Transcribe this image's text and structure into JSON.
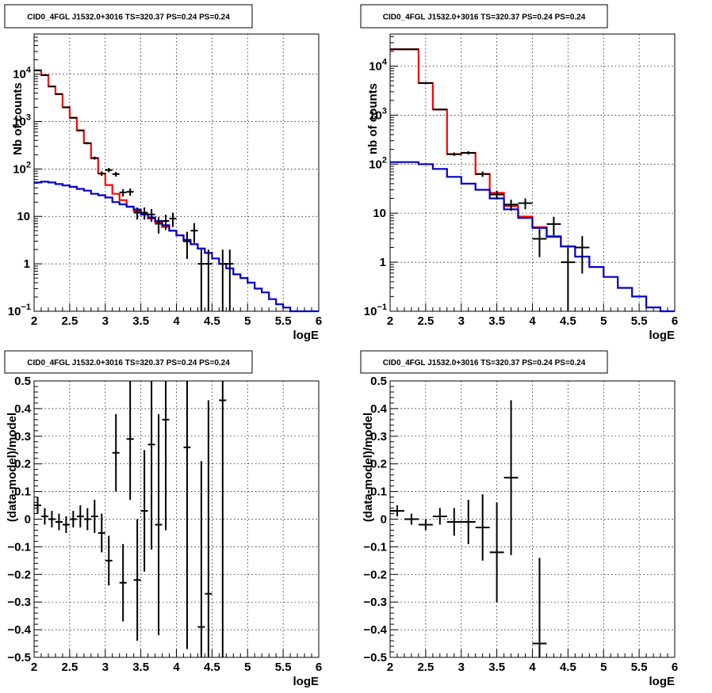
{
  "chart_data": [
    {
      "type": "line",
      "title": "CID0_4FGL J1532.0+3016 TS=320.37 PS=0.24 PS=0.24",
      "xlabel": "logE",
      "ylabel": "Nb of counts",
      "log_y": true,
      "xlim": [
        2,
        6
      ],
      "ylim": [
        0.1,
        70000
      ],
      "grid": true,
      "x_ticks": [
        "2",
        "2.5",
        "3",
        "3.5",
        "4",
        "4.5",
        "5",
        "5.5",
        "6"
      ],
      "y_ticks": [
        {
          "value": 0.1,
          "base": "10",
          "exp": "−1"
        },
        {
          "value": 1,
          "label": "1"
        },
        {
          "value": 10,
          "label": "10"
        },
        {
          "value": 100,
          "base": "10",
          "exp": "2"
        },
        {
          "value": 1000,
          "base": "10",
          "exp": "3"
        },
        {
          "value": 10000,
          "base": "10",
          "exp": "4"
        }
      ],
      "bin_width": 0.1,
      "series": [
        {
          "color": "#ff0000",
          "kind": "step",
          "x": [
            2.0,
            2.1,
            2.2,
            2.3,
            2.4,
            2.5,
            2.6,
            2.7,
            2.8,
            2.9,
            3.0,
            3.1,
            3.2,
            3.3,
            3.4,
            3.5,
            3.6,
            3.7,
            3.8,
            3.9,
            4.0,
            4.1,
            4.2,
            4.3,
            4.4
          ],
          "y": [
            12000,
            9500,
            5500,
            3800,
            2000,
            1200,
            650,
            350,
            170,
            80,
            46,
            30,
            22,
            16,
            13,
            11,
            9,
            7.5,
            6,
            5,
            4,
            3,
            2.6,
            2.1,
            1.7
          ]
        },
        {
          "color": "#0000cc",
          "kind": "step",
          "x": [
            2.0,
            2.1,
            2.2,
            2.3,
            2.4,
            2.5,
            2.6,
            2.7,
            2.8,
            2.9,
            3.0,
            3.1,
            3.2,
            3.3,
            3.4,
            3.5,
            3.6,
            3.7,
            3.8,
            3.9,
            4.0,
            4.1,
            4.2,
            4.3,
            4.4,
            4.5,
            4.6,
            4.7,
            4.8,
            4.9,
            5.0,
            5.1,
            5.2,
            5.3,
            5.4,
            5.5,
            5.6,
            5.7,
            5.8,
            5.9
          ],
          "y": [
            52,
            54,
            52,
            48,
            45,
            42,
            38,
            35,
            30,
            28,
            25,
            20,
            18,
            16,
            14,
            11,
            9.5,
            8,
            6.5,
            5,
            4,
            3.2,
            2.6,
            2.1,
            1.7,
            1.3,
            1.0,
            0.8,
            0.6,
            0.5,
            0.4,
            0.3,
            0.25,
            0.18,
            0.14,
            0.12,
            0.1,
            0.1,
            0.1,
            0.1
          ]
        },
        {
          "color": "#000000",
          "kind": "points",
          "x": [
            2.05,
            2.15,
            2.25,
            2.35,
            2.45,
            2.55,
            2.65,
            2.75,
            2.85,
            2.95,
            3.05,
            3.15,
            3.25,
            3.35,
            3.45,
            3.55,
            3.65,
            3.75,
            3.85,
            3.95,
            4.15,
            4.25,
            4.35,
            4.45,
            4.65,
            4.75
          ],
          "y": [
            12000,
            9500,
            5500,
            3800,
            2000,
            1200,
            650,
            350,
            170,
            80,
            95,
            78,
            32,
            33,
            12,
            12,
            11,
            7,
            8,
            9,
            3,
            5,
            1,
            1,
            1,
            1
          ]
        }
      ]
    },
    {
      "type": "line",
      "title": "CID0_4FGL J1532.0+3016 TS=320.37 PS=0.24 PS=0.24",
      "xlabel": "logE",
      "ylabel": "nb of counts",
      "log_y": true,
      "xlim": [
        2,
        6
      ],
      "ylim": [
        0.1,
        45000
      ],
      "grid": true,
      "x_ticks": [
        "2",
        "2.5",
        "3",
        "3.5",
        "4",
        "4.5",
        "5",
        "5.5",
        "6"
      ],
      "y_ticks": [
        {
          "value": 0.1,
          "base": "10",
          "exp": "−1"
        },
        {
          "value": 1,
          "label": "1"
        },
        {
          "value": 10,
          "label": "10"
        },
        {
          "value": 100,
          "base": "10",
          "exp": "2"
        },
        {
          "value": 1000,
          "base": "10",
          "exp": "3"
        },
        {
          "value": 10000,
          "base": "10",
          "exp": "4"
        }
      ],
      "bin_width": 0.2,
      "series": [
        {
          "color": "#ff0000",
          "kind": "step",
          "x": [
            2.0,
            2.2,
            2.4,
            2.6,
            2.8,
            3.0,
            3.2,
            3.4,
            3.6,
            3.8,
            4.0,
            4.2,
            4.4
          ],
          "y": [
            22000,
            22000,
            4500,
            1300,
            160,
            170,
            63,
            26,
            14,
            8.5,
            5.2,
            3.4,
            2.1
          ]
        },
        {
          "color": "#0000cc",
          "kind": "step",
          "x": [
            2.0,
            2.2,
            2.4,
            2.6,
            2.8,
            3.0,
            3.2,
            3.4,
            3.6,
            3.8,
            4.0,
            4.2,
            4.4,
            4.6,
            4.8,
            5.0,
            5.2,
            5.4,
            5.6,
            5.8
          ],
          "y": [
            110,
            110,
            100,
            80,
            55,
            40,
            30,
            20,
            12,
            8,
            5,
            3.3,
            2.1,
            1.3,
            0.8,
            0.5,
            0.3,
            0.2,
            0.12,
            0.1
          ]
        },
        {
          "color": "#000000",
          "kind": "points",
          "x": [
            2.1,
            2.3,
            2.5,
            2.7,
            2.9,
            3.1,
            3.3,
            3.5,
            3.7,
            3.9,
            4.1,
            4.3,
            4.5,
            4.7
          ],
          "y": [
            22000,
            22000,
            4500,
            1300,
            160,
            170,
            63,
            24,
            15,
            16,
            3,
            6,
            1,
            2
          ]
        }
      ]
    },
    {
      "type": "scatter",
      "title": "CID0_4FGL J1532.0+3016 TS=320.37 PS=0.24 PS=0.24",
      "xlabel": "logE",
      "ylabel": "(data-model)/model",
      "xlim": [
        2,
        6
      ],
      "ylim": [
        -0.5,
        0.5
      ],
      "grid": true,
      "x_ticks": [
        "2",
        "2.5",
        "3",
        "3.5",
        "4",
        "4.5",
        "5",
        "5.5",
        "6"
      ],
      "y_ticks": [
        "−0.5",
        "−0.4",
        "−0.3",
        "−0.2",
        "−0.1",
        "0",
        "0.1",
        "0.2",
        "0.3",
        "0.4",
        "0.5"
      ],
      "bin_width": 0.1,
      "series": [
        {
          "color": "#000000",
          "kind": "points",
          "x": [
            2.05,
            2.15,
            2.25,
            2.35,
            2.45,
            2.55,
            2.65,
            2.75,
            2.85,
            2.95,
            3.05,
            3.15,
            3.25,
            3.35,
            3.45,
            3.55,
            3.65,
            3.75,
            3.85,
            4.15,
            4.35,
            4.45,
            4.65
          ],
          "y": [
            0.05,
            0.01,
            0.0,
            -0.01,
            -0.02,
            0.0,
            0.01,
            0.0,
            0.01,
            -0.05,
            -0.15,
            0.24,
            -0.23,
            0.29,
            -0.22,
            0.03,
            0.27,
            -0.02,
            0.36,
            0.26,
            -0.39,
            -0.27,
            0.43
          ],
          "err": [
            0.03,
            0.03,
            0.03,
            0.03,
            0.03,
            0.03,
            0.04,
            0.04,
            0.06,
            0.07,
            0.09,
            0.14,
            0.14,
            0.22,
            0.22,
            0.22,
            0.38,
            0.4,
            0.4,
            0.73,
            0.6,
            0.7,
            1.0
          ]
        }
      ]
    },
    {
      "type": "scatter",
      "title": "CID0_4FGL J1532.0+3016 TS=320.37 PS=0.24 PS=0.24",
      "xlabel": "logE",
      "ylabel": "(data-model)/model",
      "xlim": [
        2,
        6
      ],
      "ylim": [
        -0.5,
        0.5
      ],
      "grid": true,
      "x_ticks": [
        "2",
        "2.5",
        "3",
        "3.5",
        "4",
        "4.5",
        "5",
        "5.5",
        "6"
      ],
      "y_ticks": [
        "−0.5",
        "−0.4",
        "−0.3",
        "−0.2",
        "−0.1",
        "0",
        "0.1",
        "0.2",
        "0.3",
        "0.4",
        "0.5"
      ],
      "bin_width": 0.2,
      "series": [
        {
          "color": "#000000",
          "kind": "points",
          "x": [
            2.1,
            2.3,
            2.5,
            2.7,
            2.9,
            3.1,
            3.3,
            3.5,
            3.7,
            4.1
          ],
          "y": [
            0.03,
            0.0,
            -0.02,
            0.01,
            -0.01,
            -0.01,
            -0.03,
            -0.12,
            0.15,
            -0.45
          ],
          "err": [
            0.02,
            0.02,
            0.02,
            0.03,
            0.05,
            0.08,
            0.12,
            0.18,
            0.28,
            0.31
          ]
        }
      ]
    }
  ]
}
